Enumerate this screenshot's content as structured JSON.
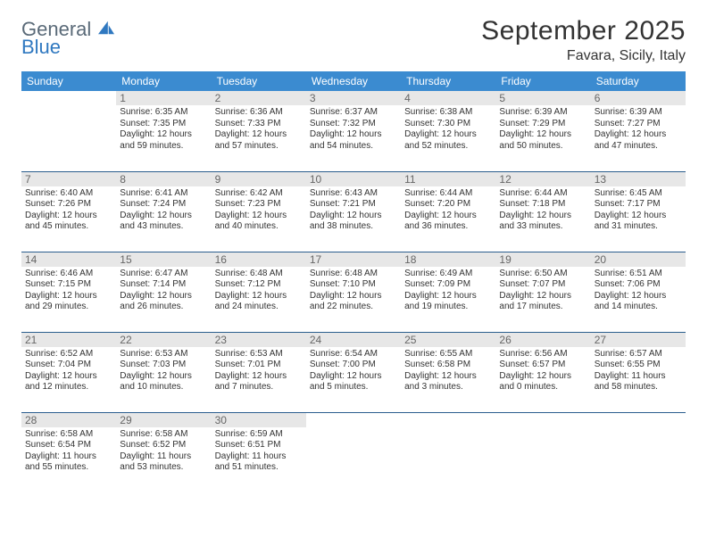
{
  "brand": {
    "line1": "General",
    "line2": "Blue"
  },
  "colors": {
    "header_bg": "#3b8bd0",
    "header_fg": "#ffffff",
    "daynum_bg": "#e7e7e7",
    "daynum_fg": "#666666",
    "row_border": "#2b5e8e",
    "text": "#333333",
    "logo_gray": "#5a6a78",
    "logo_blue": "#2f78c0"
  },
  "title": "September 2025",
  "location": "Favara, Sicily, Italy",
  "weekdays": [
    "Sunday",
    "Monday",
    "Tuesday",
    "Wednesday",
    "Thursday",
    "Friday",
    "Saturday"
  ],
  "first_weekday_index": 1,
  "days": [
    {
      "n": 1,
      "sunrise": "6:35 AM",
      "sunset": "7:35 PM",
      "daylight": "12 hours and 59 minutes."
    },
    {
      "n": 2,
      "sunrise": "6:36 AM",
      "sunset": "7:33 PM",
      "daylight": "12 hours and 57 minutes."
    },
    {
      "n": 3,
      "sunrise": "6:37 AM",
      "sunset": "7:32 PM",
      "daylight": "12 hours and 54 minutes."
    },
    {
      "n": 4,
      "sunrise": "6:38 AM",
      "sunset": "7:30 PM",
      "daylight": "12 hours and 52 minutes."
    },
    {
      "n": 5,
      "sunrise": "6:39 AM",
      "sunset": "7:29 PM",
      "daylight": "12 hours and 50 minutes."
    },
    {
      "n": 6,
      "sunrise": "6:39 AM",
      "sunset": "7:27 PM",
      "daylight": "12 hours and 47 minutes."
    },
    {
      "n": 7,
      "sunrise": "6:40 AM",
      "sunset": "7:26 PM",
      "daylight": "12 hours and 45 minutes."
    },
    {
      "n": 8,
      "sunrise": "6:41 AM",
      "sunset": "7:24 PM",
      "daylight": "12 hours and 43 minutes."
    },
    {
      "n": 9,
      "sunrise": "6:42 AM",
      "sunset": "7:23 PM",
      "daylight": "12 hours and 40 minutes."
    },
    {
      "n": 10,
      "sunrise": "6:43 AM",
      "sunset": "7:21 PM",
      "daylight": "12 hours and 38 minutes."
    },
    {
      "n": 11,
      "sunrise": "6:44 AM",
      "sunset": "7:20 PM",
      "daylight": "12 hours and 36 minutes."
    },
    {
      "n": 12,
      "sunrise": "6:44 AM",
      "sunset": "7:18 PM",
      "daylight": "12 hours and 33 minutes."
    },
    {
      "n": 13,
      "sunrise": "6:45 AM",
      "sunset": "7:17 PM",
      "daylight": "12 hours and 31 minutes."
    },
    {
      "n": 14,
      "sunrise": "6:46 AM",
      "sunset": "7:15 PM",
      "daylight": "12 hours and 29 minutes."
    },
    {
      "n": 15,
      "sunrise": "6:47 AM",
      "sunset": "7:14 PM",
      "daylight": "12 hours and 26 minutes."
    },
    {
      "n": 16,
      "sunrise": "6:48 AM",
      "sunset": "7:12 PM",
      "daylight": "12 hours and 24 minutes."
    },
    {
      "n": 17,
      "sunrise": "6:48 AM",
      "sunset": "7:10 PM",
      "daylight": "12 hours and 22 minutes."
    },
    {
      "n": 18,
      "sunrise": "6:49 AM",
      "sunset": "7:09 PM",
      "daylight": "12 hours and 19 minutes."
    },
    {
      "n": 19,
      "sunrise": "6:50 AM",
      "sunset": "7:07 PM",
      "daylight": "12 hours and 17 minutes."
    },
    {
      "n": 20,
      "sunrise": "6:51 AM",
      "sunset": "7:06 PM",
      "daylight": "12 hours and 14 minutes."
    },
    {
      "n": 21,
      "sunrise": "6:52 AM",
      "sunset": "7:04 PM",
      "daylight": "12 hours and 12 minutes."
    },
    {
      "n": 22,
      "sunrise": "6:53 AM",
      "sunset": "7:03 PM",
      "daylight": "12 hours and 10 minutes."
    },
    {
      "n": 23,
      "sunrise": "6:53 AM",
      "sunset": "7:01 PM",
      "daylight": "12 hours and 7 minutes."
    },
    {
      "n": 24,
      "sunrise": "6:54 AM",
      "sunset": "7:00 PM",
      "daylight": "12 hours and 5 minutes."
    },
    {
      "n": 25,
      "sunrise": "6:55 AM",
      "sunset": "6:58 PM",
      "daylight": "12 hours and 3 minutes."
    },
    {
      "n": 26,
      "sunrise": "6:56 AM",
      "sunset": "6:57 PM",
      "daylight": "12 hours and 0 minutes."
    },
    {
      "n": 27,
      "sunrise": "6:57 AM",
      "sunset": "6:55 PM",
      "daylight": "11 hours and 58 minutes."
    },
    {
      "n": 28,
      "sunrise": "6:58 AM",
      "sunset": "6:54 PM",
      "daylight": "11 hours and 55 minutes."
    },
    {
      "n": 29,
      "sunrise": "6:58 AM",
      "sunset": "6:52 PM",
      "daylight": "11 hours and 53 minutes."
    },
    {
      "n": 30,
      "sunrise": "6:59 AM",
      "sunset": "6:51 PM",
      "daylight": "11 hours and 51 minutes."
    }
  ],
  "labels": {
    "sunrise": "Sunrise:",
    "sunset": "Sunset:",
    "daylight": "Daylight:"
  }
}
